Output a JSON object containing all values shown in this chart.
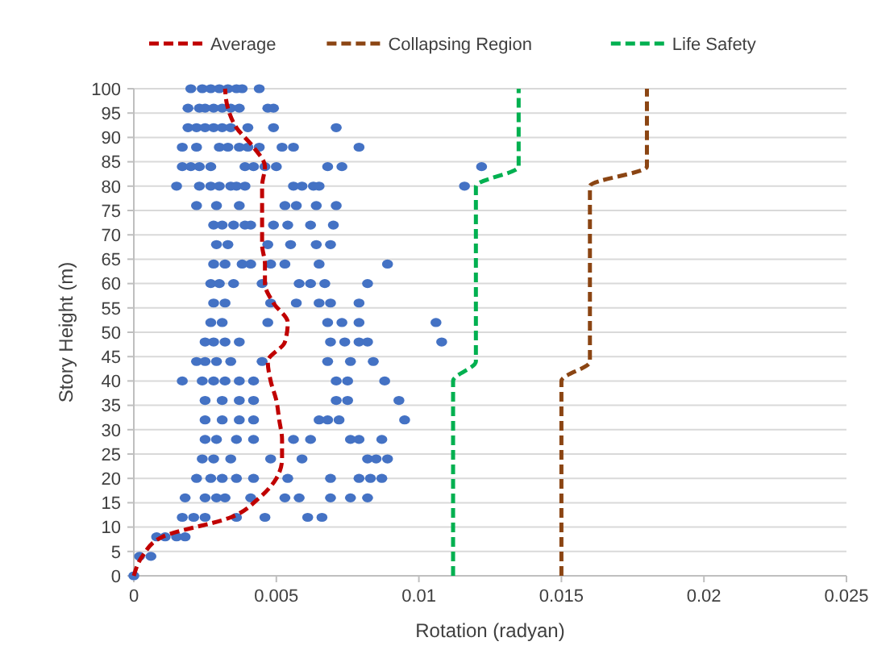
{
  "chart_data": {
    "type": "scatter",
    "xlabel": "Rotation (radyan)",
    "ylabel": "Story Height (m)",
    "xlim": [
      0,
      0.025
    ],
    "xticks": [
      0,
      0.005,
      0.01,
      0.015,
      0.02,
      0.025
    ],
    "ylim": [
      0,
      100
    ],
    "yticks": [
      0,
      5,
      10,
      15,
      20,
      25,
      30,
      35,
      40,
      45,
      50,
      55,
      60,
      65,
      70,
      75,
      80,
      85,
      90,
      95,
      100
    ],
    "grid": "y",
    "legend": "top",
    "series": [
      {
        "color": "#4472c4",
        "marker": "circle",
        "x": [
          0.002,
          0.0024,
          0.0027,
          0.003,
          0.0033,
          0.0036,
          0.0038,
          0.0044,
          0.0019,
          0.0023,
          0.0025,
          0.0028,
          0.0031,
          0.0034,
          0.0037,
          0.0047,
          0.0049,
          0.0019,
          0.0022,
          0.0025,
          0.0028,
          0.0031,
          0.0034,
          0.004,
          0.0049,
          0.0071,
          0.0017,
          0.0022,
          0.003,
          0.0033,
          0.0037,
          0.004,
          0.0044,
          0.0052,
          0.0056,
          0.0079,
          0.0017,
          0.002,
          0.0023,
          0.0027,
          0.0039,
          0.0042,
          0.0046,
          0.005,
          0.0068,
          0.0073,
          0.0122,
          0.0015,
          0.0023,
          0.0027,
          0.003,
          0.0034,
          0.0036,
          0.0039,
          0.0056,
          0.0059,
          0.0063,
          0.0065,
          0.0116,
          0.0022,
          0.0029,
          0.0037,
          0.0053,
          0.0057,
          0.0064,
          0.0071,
          0.0028,
          0.0031,
          0.0035,
          0.0039,
          0.0041,
          0.0049,
          0.0054,
          0.0062,
          0.007,
          0.0029,
          0.0033,
          0.0047,
          0.0055,
          0.0064,
          0.0069,
          0.0028,
          0.0032,
          0.0038,
          0.0041,
          0.0048,
          0.0053,
          0.0065,
          0.0089,
          0.0027,
          0.003,
          0.0035,
          0.0045,
          0.0058,
          0.0062,
          0.0067,
          0.0082,
          0.0028,
          0.0032,
          0.0048,
          0.0057,
          0.0065,
          0.0069,
          0.0079,
          0.0027,
          0.0031,
          0.0047,
          0.0068,
          0.0073,
          0.0079,
          0.0106,
          0.0025,
          0.0028,
          0.0032,
          0.0037,
          0.0069,
          0.0074,
          0.0079,
          0.0082,
          0.0108,
          0.0022,
          0.0025,
          0.0029,
          0.0034,
          0.0045,
          0.0068,
          0.0076,
          0.0084,
          0.0017,
          0.0024,
          0.0028,
          0.0032,
          0.0037,
          0.0042,
          0.0071,
          0.0075,
          0.0088,
          0.0025,
          0.0031,
          0.0037,
          0.0042,
          0.0071,
          0.0075,
          0.0093,
          0.0025,
          0.0031,
          0.0037,
          0.0042,
          0.0065,
          0.0068,
          0.0072,
          0.0095,
          0.0025,
          0.0029,
          0.0036,
          0.0042,
          0.0056,
          0.0062,
          0.0076,
          0.0079,
          0.0087,
          0.0024,
          0.0028,
          0.0034,
          0.0048,
          0.0059,
          0.0082,
          0.0085,
          0.0089,
          0.0022,
          0.0027,
          0.0031,
          0.0036,
          0.0042,
          0.0054,
          0.0069,
          0.0079,
          0.0083,
          0.0087,
          0.0018,
          0.0025,
          0.0029,
          0.0032,
          0.0041,
          0.0053,
          0.0058,
          0.0069,
          0.0076,
          0.0082,
          0.0017,
          0.0021,
          0.0025,
          0.0036,
          0.0046,
          0.0061,
          0.0066,
          0.0008,
          0.0011,
          0.0015,
          0.0018,
          0.0002,
          0.0006,
          0
        ],
        "values": [
          100,
          100,
          100,
          100,
          100,
          100,
          100,
          100,
          96,
          96,
          96,
          96,
          96,
          96,
          96,
          96,
          96,
          92,
          92,
          92,
          92,
          92,
          92,
          92,
          92,
          92,
          88,
          88,
          88,
          88,
          88,
          88,
          88,
          88,
          88,
          88,
          84,
          84,
          84,
          84,
          84,
          84,
          84,
          84,
          84,
          84,
          84,
          80,
          80,
          80,
          80,
          80,
          80,
          80,
          80,
          80,
          80,
          80,
          80,
          76,
          76,
          76,
          76,
          76,
          76,
          76,
          72,
          72,
          72,
          72,
          72,
          72,
          72,
          72,
          72,
          68,
          68,
          68,
          68,
          68,
          68,
          64,
          64,
          64,
          64,
          64,
          64,
          64,
          64,
          60,
          60,
          60,
          60,
          60,
          60,
          60,
          60,
          56,
          56,
          56,
          56,
          56,
          56,
          56,
          52,
          52,
          52,
          52,
          52,
          52,
          52,
          48,
          48,
          48,
          48,
          48,
          48,
          48,
          48,
          48,
          44,
          44,
          44,
          44,
          44,
          44,
          44,
          44,
          40,
          40,
          40,
          40,
          40,
          40,
          40,
          40,
          40,
          36,
          36,
          36,
          36,
          36,
          36,
          36,
          32,
          32,
          32,
          32,
          32,
          32,
          32,
          32,
          28,
          28,
          28,
          28,
          28,
          28,
          28,
          28,
          28,
          24,
          24,
          24,
          24,
          24,
          24,
          24,
          24,
          20,
          20,
          20,
          20,
          20,
          20,
          20,
          20,
          20,
          20,
          16,
          16,
          16,
          16,
          16,
          16,
          16,
          16,
          16,
          16,
          12,
          12,
          12,
          12,
          12,
          12,
          12,
          8,
          8,
          8,
          8,
          4,
          4,
          0
        ]
      },
      {
        "type": "line",
        "name": "Average",
        "color": "#c00000",
        "line_style": "dashed",
        "marker": "none",
        "x": [
          0,
          0.0003,
          0.001,
          0.0034,
          0.0044,
          0.005,
          0.0052,
          0.0052,
          0.0051,
          0.005,
          0.0048,
          0.0047,
          0.0053,
          0.0054,
          0.0049,
          0.0046,
          0.0046,
          0.0045,
          0.0045,
          0.0045,
          0.0045,
          0.0046,
          0.0042,
          0.0036,
          0.0033,
          0.0032
        ],
        "values": [
          0,
          4,
          8,
          12,
          16,
          20,
          24,
          28,
          32,
          36,
          40,
          44,
          48,
          52,
          56,
          60,
          64,
          68,
          72,
          76,
          80,
          84,
          88,
          92,
          96,
          100
        ]
      },
      {
        "type": "line",
        "name": "Collapsing Region",
        "color": "#8b4513",
        "line_style": "dashed",
        "marker": "none",
        "x": [
          0.015,
          0.015,
          0.016,
          0.016,
          0.018,
          0.018
        ],
        "values": [
          0,
          40,
          44,
          80,
          84,
          100
        ]
      },
      {
        "type": "line",
        "name": "Life Safety",
        "color": "#00b050",
        "line_style": "dashed",
        "marker": "none",
        "x": [
          0.0112,
          0.0112,
          0.012,
          0.012,
          0.0135,
          0.0135
        ],
        "values": [
          0,
          40,
          44,
          80,
          84,
          100
        ]
      }
    ]
  }
}
